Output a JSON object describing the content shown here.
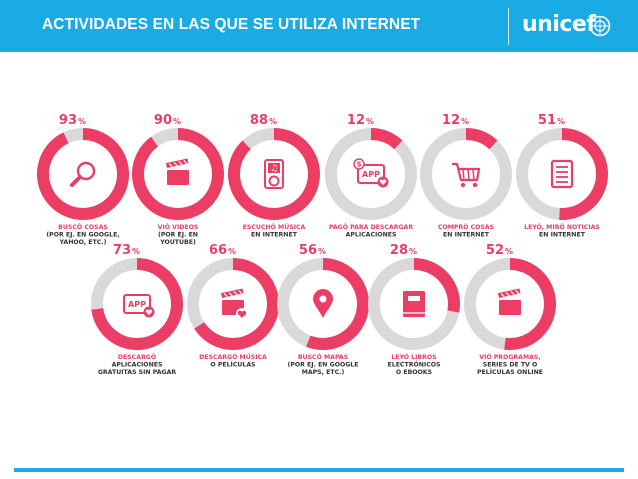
{
  "header": {
    "title": "ACTIVIDADES EN LAS QUE SE UTILIZA INTERNET",
    "logo_text": "unicef"
  },
  "colors": {
    "header": "#1aabe5",
    "accent_pink": "#ec3d64",
    "ring_grey": "#d9d9d9",
    "label_pink": "#ec3d64",
    "label_dark": "#333333"
  },
  "chart_data": {
    "type": "pie",
    "unit": "%",
    "items": [
      {
        "value": 93,
        "icon": "magnifier-icon",
        "label": [
          "BUSCÓ COSAS",
          "(POR EJ. EN GOOGLE,",
          "YAHOO, ETC.)"
        ]
      },
      {
        "value": 90,
        "icon": "clapperboard-icon",
        "label": [
          "VIÓ VIDEOS",
          "(POR EJ. EN",
          "YOUTUBE)"
        ]
      },
      {
        "value": 88,
        "icon": "music-player-icon",
        "label": [
          "ESCUCHÓ MÚSICA",
          "EN INTERNET"
        ]
      },
      {
        "value": 12,
        "icon": "paid-app-icon",
        "label": [
          "PAGÓ PARA DESCARGAR",
          "APLICACIONES"
        ]
      },
      {
        "value": 12,
        "icon": "shopping-cart-icon",
        "label": [
          "COMPRÓ COSAS",
          "EN INTERNET"
        ]
      },
      {
        "value": 51,
        "icon": "news-document-icon",
        "label": [
          "LEYÓ, MIRÓ NOTICIAS",
          "EN INTERNET"
        ]
      },
      {
        "value": 73,
        "icon": "app-heart-icon",
        "label": [
          "DESCARGÓ",
          "APLICACIONES",
          "GRATUITAS SIN PAGAR"
        ]
      },
      {
        "value": 66,
        "icon": "clapperboard-heart-icon",
        "label": [
          "DESCARGÓ MÚSICA",
          "O PELÍCULAS"
        ]
      },
      {
        "value": 56,
        "icon": "map-pin-icon",
        "label": [
          "BUSCÓ MAPAS",
          "(POR EJ. EN GOOGLE",
          "MAPS, ETC.)"
        ]
      },
      {
        "value": 28,
        "icon": "ebook-icon",
        "label": [
          "LEYÓ LIBROS",
          "ELECTRÓNICOS",
          "O EBOOKS"
        ]
      },
      {
        "value": 52,
        "icon": "clapperboard-icon",
        "label": [
          "VIÓ PROGRAMAS,",
          "SERIES DE TV O",
          "PELÍCULAS ONLINE"
        ]
      }
    ]
  }
}
